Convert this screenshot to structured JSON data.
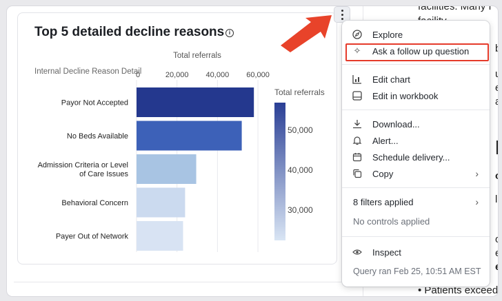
{
  "card": {
    "title": "Top 5 detailed decline reasons"
  },
  "chart_data": {
    "type": "bar",
    "orientation": "horizontal",
    "title": "Top 5 detailed decline reasons",
    "xlabel": "Total referrals",
    "ylabel": "Internal Decline Reason Detail",
    "x_ticks": [
      "0",
      "20,000",
      "40,000",
      "60,000"
    ],
    "xlim": [
      0,
      60000
    ],
    "grid": true,
    "categories": [
      "Payor Not Accepted",
      "No Beds Available",
      "Admission Criteria or Level of Care Issues",
      "Behavioral Concern",
      "Payer Out of Network"
    ],
    "category_lines": [
      [
        "Payor Not Accepted"
      ],
      [
        "No Beds Available"
      ],
      [
        "Admission Criteria or Level",
        "of Care Issues"
      ],
      [
        "Behavioral Concern"
      ],
      [
        "Payer Out of Network"
      ]
    ],
    "values": [
      58000,
      52000,
      29500,
      24000,
      23000
    ],
    "colors": [
      "#24388e",
      "#3d61b8",
      "#a8c4e3",
      "#cbdaef",
      "#d8e3f3"
    ],
    "legend": {
      "title": "Total referrals",
      "ticks": [
        "50,000",
        "40,000",
        "30,000"
      ],
      "placement": "right",
      "gradient": [
        "#2a3f95",
        "#d9e5f4"
      ]
    }
  },
  "menu": {
    "items_top": [
      {
        "icon": "compass-icon",
        "label": "Explore"
      },
      {
        "icon": "sparkle-icon",
        "label": "Ask a follow up question"
      }
    ],
    "items_chart": [
      {
        "icon": "chart-icon",
        "label": "Edit chart"
      },
      {
        "icon": "workbook-icon",
        "label": "Edit in workbook"
      }
    ],
    "items_actions": [
      {
        "icon": "download-icon",
        "label": "Download..."
      },
      {
        "icon": "bell-icon",
        "label": "Alert..."
      },
      {
        "icon": "calendar-icon",
        "label": "Schedule delivery..."
      },
      {
        "icon": "copy-icon",
        "label": "Copy"
      }
    ],
    "filters": "8 filters applied",
    "controls": "No controls applied",
    "inspect": "Inspect",
    "query": "Query ran Feb 25, 10:51 AM EST"
  },
  "background_text": {
    "line1": "facilities. Many f",
    "line2": "facility",
    "line3": "b",
    "line4": "ui",
    "line5": "e",
    "line6": "av",
    "line7": "h",
    "line8": "or",
    "line9": "l",
    "line10": "ou",
    "line11": "e",
    "line12": "e",
    "line13": "Patients exceedin"
  }
}
